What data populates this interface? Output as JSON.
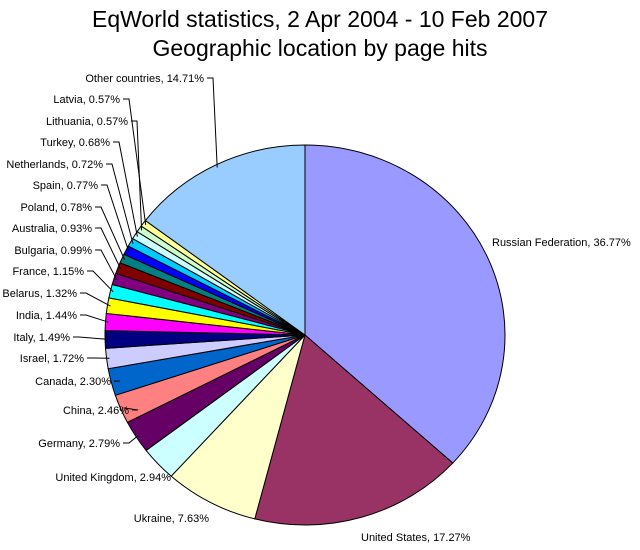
{
  "chart_data": {
    "type": "pie",
    "title": "EqWorld statistics, 2 Apr 2004 - 10 Feb 2007",
    "subtitle": "Geographic location by page hits",
    "slices": [
      {
        "label": "Russian Federation, 36.77%",
        "value": 36.77,
        "color": "#9999ff"
      },
      {
        "label": "United States, 17.27%",
        "value": 17.27,
        "color": "#993366"
      },
      {
        "label": "Ukraine, 7.63%",
        "value": 7.63,
        "color": "#ffffcc"
      },
      {
        "label": "United Kingdom, 2.94%",
        "value": 2.94,
        "color": "#ccffff"
      },
      {
        "label": "Germany, 2.79%",
        "value": 2.79,
        "color": "#660066"
      },
      {
        "label": "China, 2.46%",
        "value": 2.46,
        "color": "#ff8080"
      },
      {
        "label": "Canada, 2.30%",
        "value": 2.3,
        "color": "#0066cc"
      },
      {
        "label": "Israel, 1.72%",
        "value": 1.72,
        "color": "#ccccff"
      },
      {
        "label": "Italy, 1.49%",
        "value": 1.49,
        "color": "#000080"
      },
      {
        "label": "India, 1.44%",
        "value": 1.44,
        "color": "#ff00ff"
      },
      {
        "label": "Belarus, 1.32%",
        "value": 1.32,
        "color": "#ffff00"
      },
      {
        "label": "France, 1.15%",
        "value": 1.15,
        "color": "#00ffff"
      },
      {
        "label": "Bulgaria, 0.99%",
        "value": 0.99,
        "color": "#800080"
      },
      {
        "label": "Australia, 0.93%",
        "value": 0.93,
        "color": "#800000"
      },
      {
        "label": "Poland, 0.78%",
        "value": 0.78,
        "color": "#008080"
      },
      {
        "label": "Spain, 0.77%",
        "value": 0.77,
        "color": "#0000ff"
      },
      {
        "label": "Netherlands, 0.72%",
        "value": 0.72,
        "color": "#00ccff"
      },
      {
        "label": "Turkey, 0.68%",
        "value": 0.68,
        "color": "#ccffff"
      },
      {
        "label": "Lithuania, 0.57%",
        "value": 0.57,
        "color": "#ccffcc"
      },
      {
        "label": "Latvia, 0.57%",
        "value": 0.57,
        "color": "#ffff99"
      },
      {
        "label": "Other countries, 14.71%",
        "value": 14.71,
        "color": "#99ccff"
      }
    ]
  }
}
